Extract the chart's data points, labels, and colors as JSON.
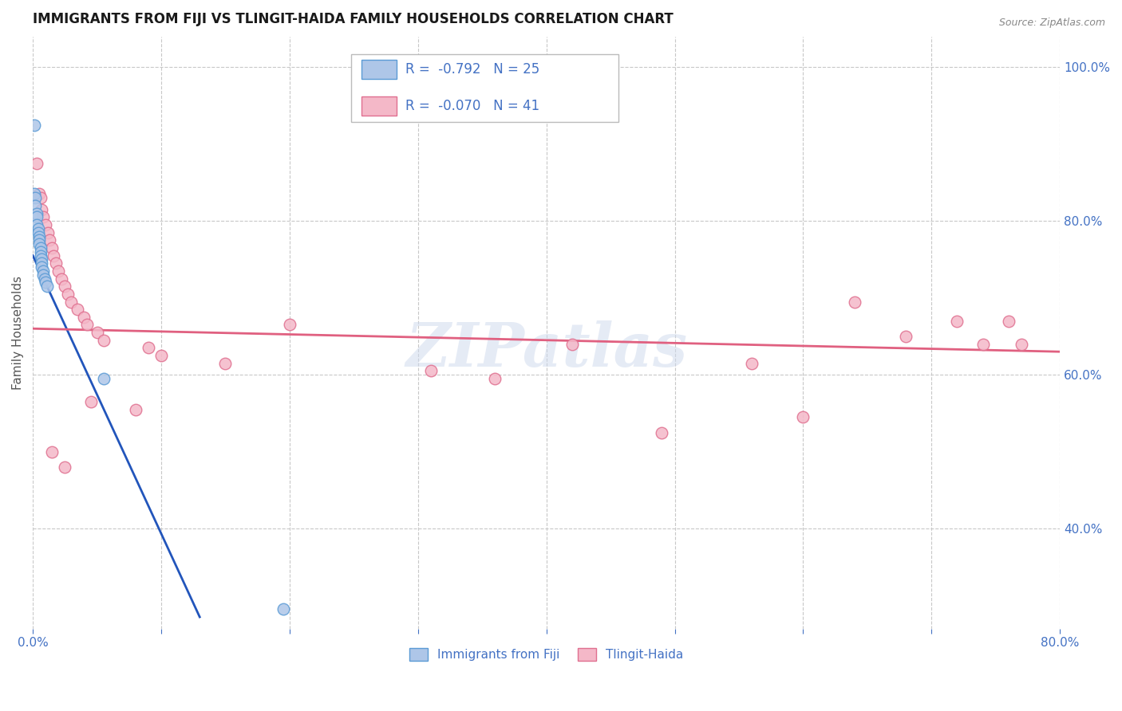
{
  "title": "IMMIGRANTS FROM FIJI VS TLINGIT-HAIDA FAMILY HOUSEHOLDS CORRELATION CHART",
  "source": "Source: ZipAtlas.com",
  "ylabel": "Family Households",
  "right_yticks": [
    "40.0%",
    "60.0%",
    "80.0%",
    "100.0%"
  ],
  "right_ytick_vals": [
    0.4,
    0.6,
    0.8,
    1.0
  ],
  "watermark": "ZIPatlas",
  "fiji_color": "#aec6e8",
  "fiji_edge": "#5b9bd5",
  "tlingit_color": "#f4b8c8",
  "tlingit_edge": "#e07090",
  "fiji_line_color": "#2255bb",
  "tlingit_line_color": "#e06080",
  "xlim": [
    0.0,
    0.8
  ],
  "ylim": [
    0.27,
    1.04
  ],
  "background_color": "#ffffff",
  "grid_color": "#c8c8c8",
  "title_fontsize": 12,
  "axis_label_color": "#4472c4",
  "fiji_scatter_x": [
    0.001,
    0.001,
    0.002,
    0.002,
    0.003,
    0.003,
    0.003,
    0.004,
    0.004,
    0.005,
    0.005,
    0.005,
    0.006,
    0.006,
    0.006,
    0.007,
    0.007,
    0.007,
    0.008,
    0.008,
    0.009,
    0.01,
    0.011,
    0.055,
    0.195
  ],
  "fiji_scatter_y": [
    0.925,
    0.835,
    0.83,
    0.82,
    0.81,
    0.805,
    0.795,
    0.79,
    0.785,
    0.78,
    0.775,
    0.77,
    0.765,
    0.76,
    0.755,
    0.75,
    0.745,
    0.74,
    0.735,
    0.73,
    0.725,
    0.72,
    0.715,
    0.595,
    0.295
  ],
  "tlingit_scatter_x": [
    0.003,
    0.005,
    0.006,
    0.007,
    0.008,
    0.01,
    0.012,
    0.013,
    0.015,
    0.016,
    0.018,
    0.02,
    0.022,
    0.025,
    0.027,
    0.03,
    0.035,
    0.04,
    0.042,
    0.05,
    0.055,
    0.09,
    0.1,
    0.15,
    0.2,
    0.31,
    0.36,
    0.42,
    0.49,
    0.56,
    0.6,
    0.64,
    0.68,
    0.72,
    0.74,
    0.76,
    0.77,
    0.025,
    0.015,
    0.045,
    0.08
  ],
  "tlingit_scatter_y": [
    0.875,
    0.835,
    0.83,
    0.815,
    0.805,
    0.795,
    0.785,
    0.775,
    0.765,
    0.755,
    0.745,
    0.735,
    0.725,
    0.715,
    0.705,
    0.695,
    0.685,
    0.675,
    0.665,
    0.655,
    0.645,
    0.635,
    0.625,
    0.615,
    0.665,
    0.605,
    0.595,
    0.64,
    0.525,
    0.615,
    0.545,
    0.695,
    0.65,
    0.67,
    0.64,
    0.67,
    0.64,
    0.48,
    0.5,
    0.565,
    0.555
  ],
  "fiji_trend_x": [
    0.0,
    0.13
  ],
  "fiji_trend_y": [
    0.755,
    0.285
  ],
  "tlingit_trend_x": [
    0.0,
    0.8
  ],
  "tlingit_trend_y": [
    0.66,
    0.63
  ]
}
